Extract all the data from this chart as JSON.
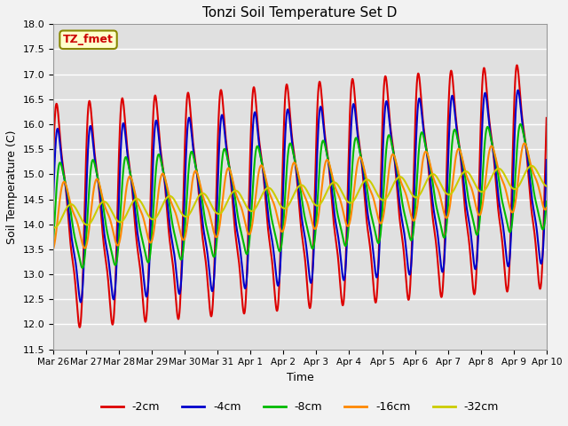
{
  "title": "Tonzi Soil Temperature Set D",
  "xlabel": "Time",
  "ylabel": "Soil Temperature (C)",
  "ylim": [
    11.5,
    18.0
  ],
  "yticks": [
    11.5,
    12.0,
    12.5,
    13.0,
    13.5,
    14.0,
    14.5,
    15.0,
    15.5,
    16.0,
    16.5,
    17.0,
    17.5,
    18.0
  ],
  "legend_label": "TZ_fmet",
  "lines": [
    {
      "label": "-2cm",
      "color": "#dd0000"
    },
    {
      "label": "-4cm",
      "color": "#0000cc"
    },
    {
      "label": "-8cm",
      "color": "#00bb00"
    },
    {
      "label": "-16cm",
      "color": "#ff8800"
    },
    {
      "label": "-32cm",
      "color": "#cccc00"
    }
  ],
  "date_labels": [
    "Mar 26",
    "Mar 27",
    "Mar 28",
    "Mar 29",
    "Mar 30",
    "Mar 31",
    "Apr 1",
    "Apr 2",
    "Apr 3",
    "Apr 4",
    "Apr 5",
    "Apr 6",
    "Apr 7",
    "Apr 8",
    "Apr 9",
    "Apr 10"
  ],
  "background_color": "#e0e0e0",
  "grid_color": "#ffffff",
  "fig_bg": "#f2f2f2",
  "n_days": 15,
  "amp_2cm": 2.7,
  "amp_4cm": 2.1,
  "amp_8cm": 1.3,
  "amp_16cm": 0.6,
  "amp_32cm": 0.22,
  "mean_base": 14.15,
  "trend": 0.055
}
